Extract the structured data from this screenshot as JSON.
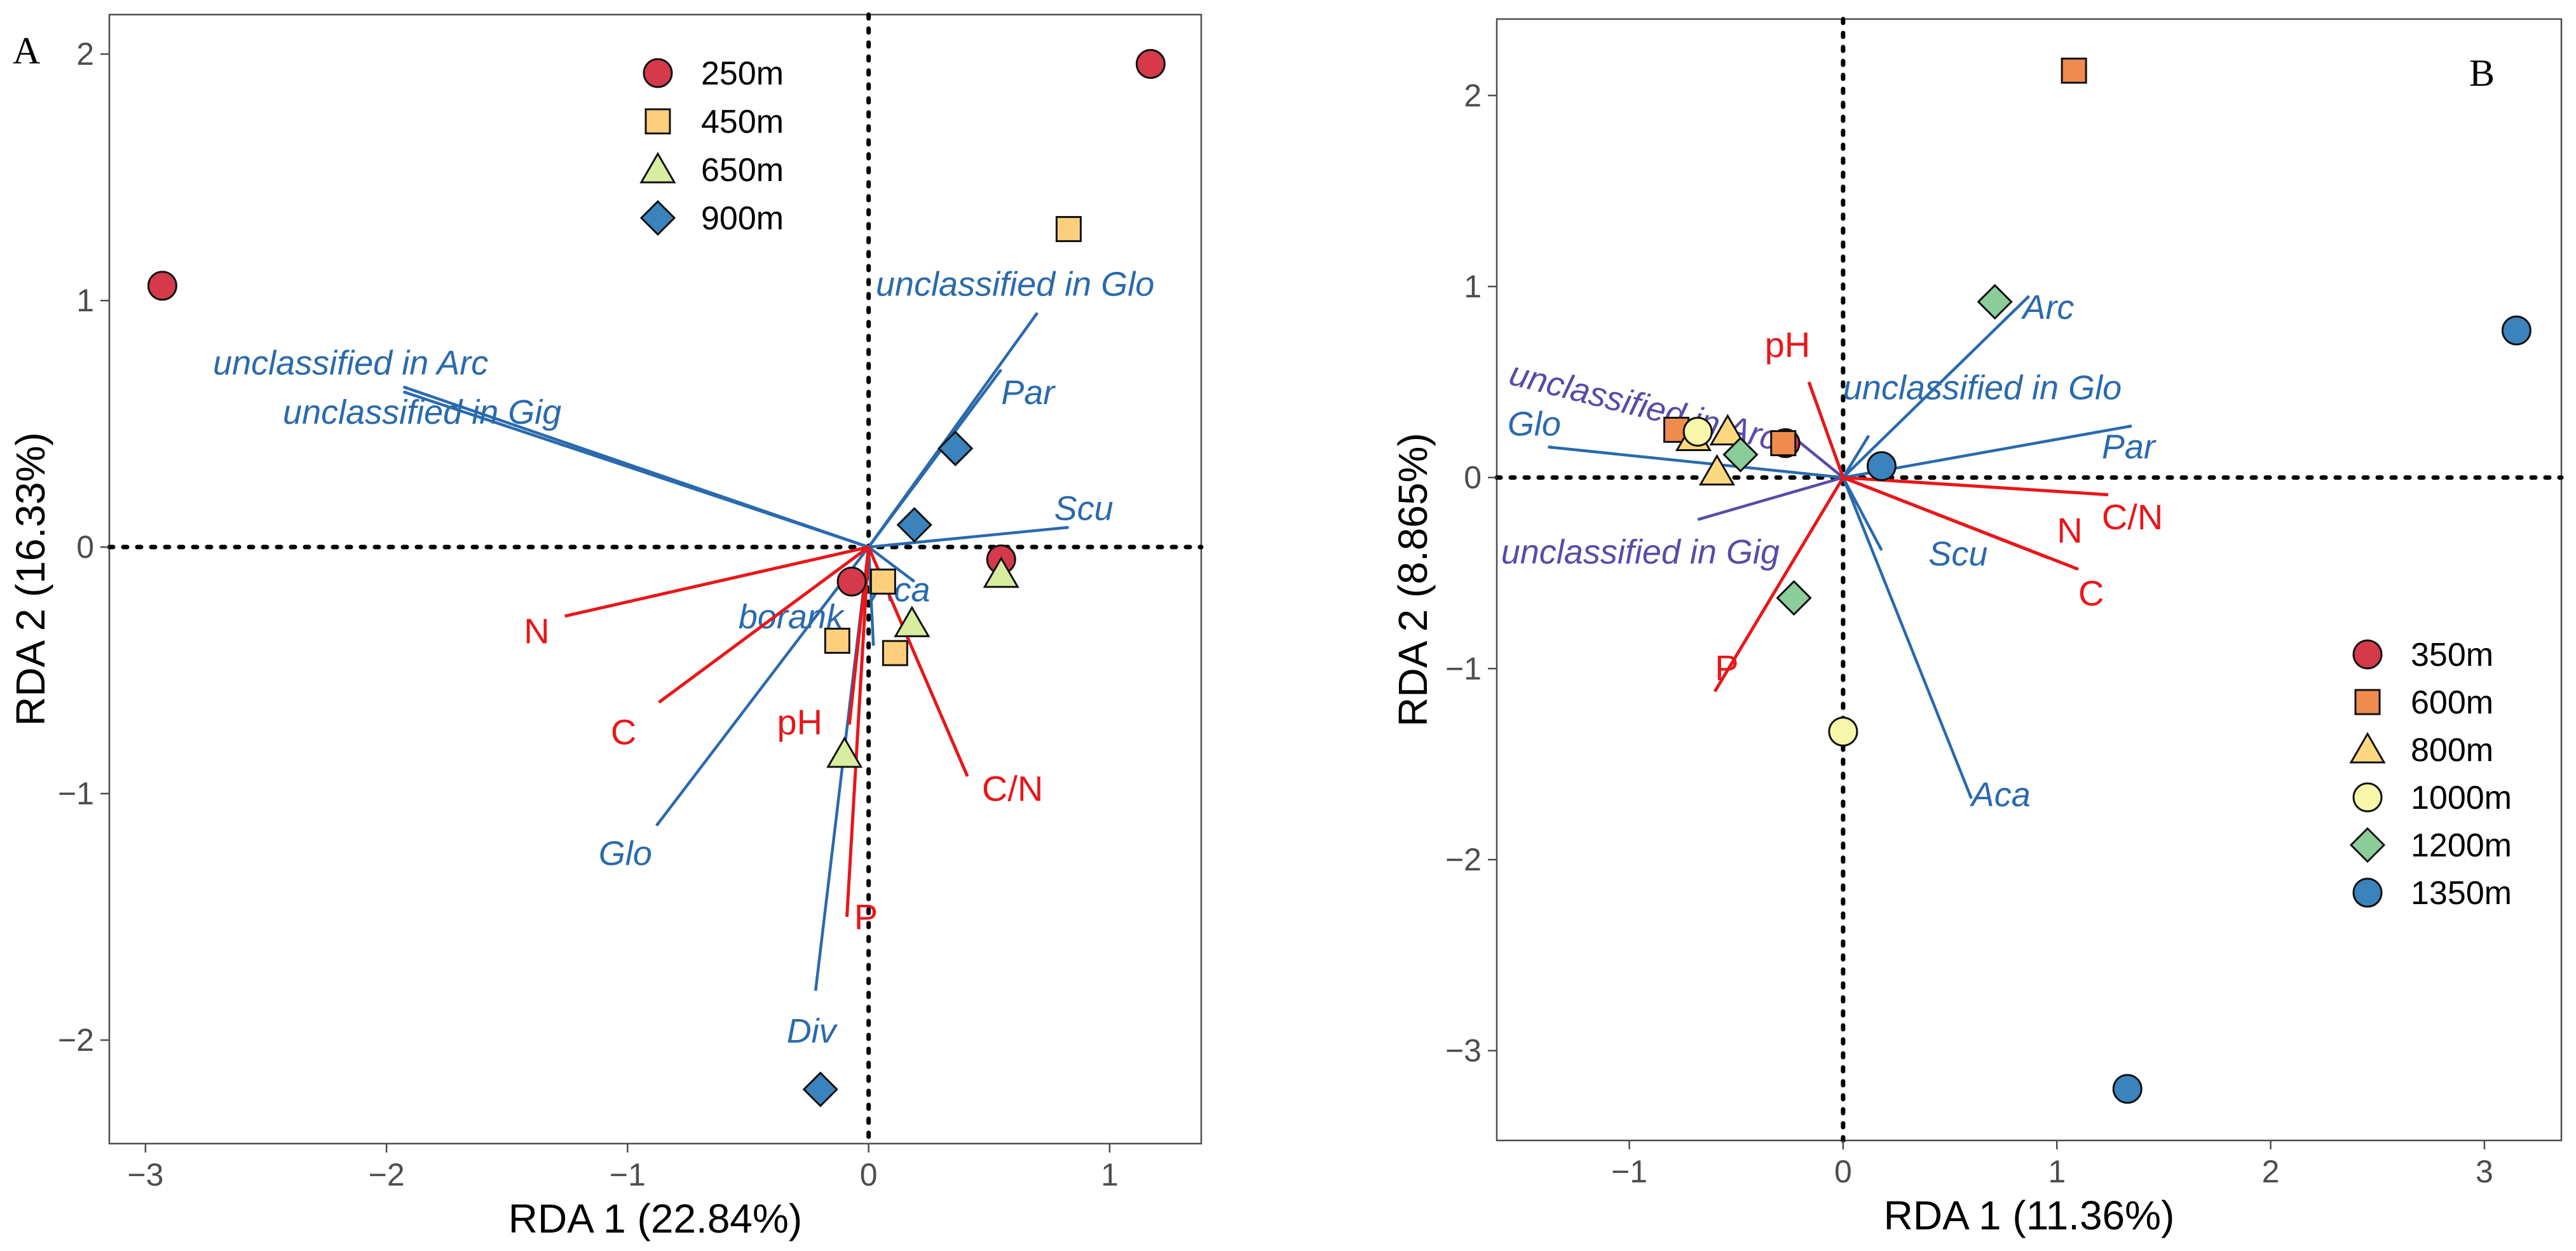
{
  "chart_data": [
    {
      "type": "scatter",
      "panel": "A",
      "xlabel": "RDA 1 (22.84%)",
      "ylabel": "RDA 2 (16.33%)",
      "xlim": [
        -3.15,
        1.38
      ],
      "ylim": [
        -2.42,
        2.16
      ],
      "xticks": [
        -3,
        -2,
        -1,
        0,
        1
      ],
      "yticks": [
        -2,
        -1,
        0,
        1,
        2
      ],
      "xtick_labels": [
        "−3",
        "−2",
        "−1",
        "0",
        "1"
      ],
      "ytick_labels": [
        "−2",
        "−1",
        "0",
        "1",
        "2"
      ],
      "legend_position": "top-center",
      "series": [
        {
          "name": "250m",
          "marker": "circle",
          "color": "#d63a4a",
          "points": [
            [
              -2.93,
              1.06
            ],
            [
              1.17,
              1.96
            ],
            [
              0.55,
              -0.05
            ],
            [
              -0.07,
              -0.14
            ]
          ]
        },
        {
          "name": "450m",
          "marker": "square",
          "color": "#fdcf7c",
          "points": [
            [
              0.83,
              1.29
            ],
            [
              0.06,
              -0.14
            ],
            [
              -0.13,
              -0.38
            ],
            [
              0.11,
              -0.43
            ]
          ]
        },
        {
          "name": "650m",
          "marker": "triangle",
          "color": "#d8eda0",
          "points": [
            [
              0.55,
              -0.11
            ],
            [
              0.18,
              -0.31
            ],
            [
              -0.1,
              -0.84
            ]
          ]
        },
        {
          "name": "900m",
          "marker": "diamond",
          "color": "#3a83bd",
          "points": [
            [
              0.36,
              0.4
            ],
            [
              0.19,
              0.09
            ],
            [
              -0.2,
              -2.2
            ]
          ]
        }
      ],
      "vectors": [
        {
          "name": "unclassified in Glo",
          "group": "taxa",
          "end": [
            0.7,
            0.95
          ],
          "label_pos": [
            0.03,
            1.02
          ],
          "anchor": "start"
        },
        {
          "name": "unclassified in Arc",
          "group": "taxa",
          "end": [
            -1.93,
            0.65
          ],
          "label_pos": [
            -2.72,
            0.7
          ],
          "anchor": "start"
        },
        {
          "name": "unclassified in Gig",
          "group": "taxa",
          "end": [
            -1.93,
            0.63
          ],
          "label_pos": [
            -2.43,
            0.5
          ],
          "anchor": "start"
        },
        {
          "name": "Par",
          "group": "taxa",
          "end": [
            0.55,
            0.72
          ],
          "label_pos": [
            0.55,
            0.58
          ],
          "anchor": "start"
        },
        {
          "name": "Scu",
          "group": "taxa",
          "end": [
            0.83,
            0.08
          ],
          "label_pos": [
            0.77,
            0.11
          ],
          "anchor": "start"
        },
        {
          "name": "Aca",
          "group": "taxa",
          "end": [
            0.19,
            -0.14
          ],
          "label_pos": [
            0.01,
            -0.22
          ],
          "anchor": "start"
        },
        {
          "name": "borank",
          "group": "taxa",
          "end": [
            0.02,
            -0.4
          ],
          "label_pos": [
            -0.54,
            -0.33
          ],
          "anchor": "start"
        },
        {
          "name": "Glo",
          "group": "taxa",
          "end": [
            -0.88,
            -1.13
          ],
          "label_pos": [
            -1.12,
            -1.29
          ],
          "anchor": "start"
        },
        {
          "name": "Div",
          "group": "taxa",
          "end": [
            -0.22,
            -1.8
          ],
          "label_pos": [
            -0.34,
            -2.01
          ],
          "anchor": "start"
        },
        {
          "name": "N",
          "group": "env",
          "end": [
            -1.26,
            -0.28
          ],
          "label_pos": [
            -1.43,
            -0.39
          ],
          "anchor": "start"
        },
        {
          "name": "C",
          "group": "env",
          "end": [
            -0.87,
            -0.63
          ],
          "label_pos": [
            -1.07,
            -0.8
          ],
          "anchor": "start"
        },
        {
          "name": "pH",
          "group": "env",
          "end": [
            -0.08,
            -0.72
          ],
          "label_pos": [
            -0.38,
            -0.76
          ],
          "anchor": "start"
        },
        {
          "name": "C/N",
          "group": "env",
          "end": [
            0.41,
            -0.93
          ],
          "label_pos": [
            0.47,
            -1.03
          ],
          "anchor": "start"
        },
        {
          "name": "P",
          "group": "env",
          "end": [
            -0.09,
            -1.5
          ],
          "label_pos": [
            -0.06,
            -1.55
          ],
          "anchor": "start"
        }
      ]
    },
    {
      "type": "scatter",
      "panel": "B",
      "xlabel": "RDA 1 (11.36%)",
      "ylabel": "RDA 2 (8.865%)",
      "xlim": [
        -1.62,
        3.36
      ],
      "ylim": [
        -3.47,
        2.4
      ],
      "xticks": [
        -1,
        0,
        1,
        2,
        3
      ],
      "yticks": [
        -3,
        -2,
        -1,
        0,
        1,
        2
      ],
      "xtick_labels": [
        "−1",
        "0",
        "1",
        "2",
        "3"
      ],
      "ytick_labels": [
        "−3",
        "−2",
        "−1",
        "0",
        "1",
        "2"
      ],
      "legend_position": "bottom-right",
      "series": [
        {
          "name": "350m",
          "marker": "circle",
          "color": "#d63a4a",
          "points": [
            [
              -0.27,
              0.18
            ]
          ]
        },
        {
          "name": "600m",
          "marker": "square",
          "color": "#f08b4e",
          "points": [
            [
              1.08,
              2.13
            ],
            [
              -0.78,
              0.25
            ],
            [
              -0.28,
              0.18
            ]
          ]
        },
        {
          "name": "800m",
          "marker": "triangle",
          "color": "#fdd87f",
          "points": [
            [
              -0.7,
              0.21
            ],
            [
              -0.54,
              0.24
            ],
            [
              -0.59,
              0.03
            ]
          ]
        },
        {
          "name": "1000m",
          "marker": "circle",
          "color": "#f6f7a9",
          "points": [
            [
              -0.68,
              0.24
            ],
            [
              0.0,
              -1.33
            ]
          ]
        },
        {
          "name": "1200m",
          "marker": "diamond",
          "color": "#8acd99",
          "points": [
            [
              0.71,
              0.92
            ],
            [
              -0.48,
              0.12
            ],
            [
              -0.23,
              -0.63
            ]
          ]
        },
        {
          "name": "1350m",
          "marker": "circle",
          "color": "#3a83bd",
          "points": [
            [
              3.15,
              0.77
            ],
            [
              0.18,
              0.06
            ],
            [
              1.33,
              -3.2
            ]
          ]
        }
      ],
      "vectors": [
        {
          "name": "Arc",
          "group": "taxa",
          "end": [
            0.87,
            0.95
          ],
          "label_pos": [
            0.84,
            0.83
          ],
          "anchor": "start"
        },
        {
          "name": "unclassified in Arc",
          "group": "taxa2",
          "end": [
            -0.22,
            0.2
          ],
          "label_pos": [
            -1.57,
            0.49
          ],
          "anchor": "start",
          "rotate": 14
        },
        {
          "name": "unclassified in Glo",
          "group": "taxa",
          "end": [
            0.12,
            0.22
          ],
          "label_pos": [
            0.0,
            0.41
          ],
          "anchor": "start"
        },
        {
          "name": "Glo",
          "group": "taxa",
          "end": [
            -1.38,
            0.16
          ],
          "label_pos": [
            -1.57,
            0.22
          ],
          "anchor": "start"
        },
        {
          "name": "Par",
          "group": "taxa",
          "end": [
            1.35,
            0.27
          ],
          "label_pos": [
            1.21,
            0.1
          ],
          "anchor": "start"
        },
        {
          "name": "unclassified in Gig",
          "group": "taxa2",
          "end": [
            -0.68,
            -0.22
          ],
          "label_pos": [
            -1.6,
            -0.45
          ],
          "anchor": "start"
        },
        {
          "name": "Scu",
          "group": "taxa",
          "end": [
            0.18,
            -0.38
          ],
          "label_pos": [
            0.4,
            -0.46
          ],
          "anchor": "start"
        },
        {
          "name": "Aca",
          "group": "taxa",
          "end": [
            0.6,
            -1.68
          ],
          "label_pos": [
            0.6,
            -1.72
          ],
          "anchor": "start"
        },
        {
          "name": "pH",
          "group": "env",
          "end": [
            -0.16,
            0.5
          ],
          "label_pos": [
            -0.26,
            0.63
          ],
          "anchor": "middle"
        },
        {
          "name": "C/N",
          "group": "env",
          "end": [
            1.24,
            -0.09
          ],
          "label_pos": [
            1.21,
            -0.27
          ],
          "anchor": "start"
        },
        {
          "name": "N",
          "group": "env",
          "end": [
            0.96,
            -0.42
          ],
          "label_pos": [
            1.0,
            -0.34
          ],
          "anchor": "start"
        },
        {
          "name": "C",
          "group": "env",
          "end": [
            1.1,
            -0.48
          ],
          "label_pos": [
            1.1,
            -0.67
          ],
          "anchor": "start"
        },
        {
          "name": "P",
          "group": "env",
          "end": [
            -0.6,
            -1.12
          ],
          "label_pos": [
            -0.6,
            -1.06
          ],
          "anchor": "start"
        }
      ]
    }
  ]
}
